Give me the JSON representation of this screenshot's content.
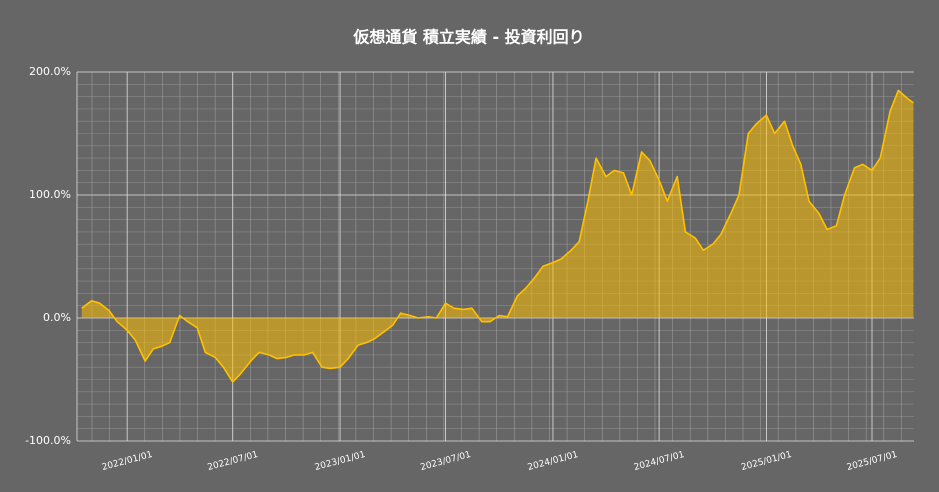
{
  "chart_data": {
    "type": "area",
    "title": "仮想通貨 積立実績 - 投資利回り",
    "x": [
      "2021/10/15",
      "2021/11/01",
      "2021/11/15",
      "2021/12/01",
      "2021/12/15",
      "2022/01/01",
      "2022/01/15",
      "2022/02/01",
      "2022/02/15",
      "2022/03/01",
      "2022/03/15",
      "2022/04/01",
      "2022/04/15",
      "2022/05/01",
      "2022/05/15",
      "2022/06/01",
      "2022/06/15",
      "2022/07/01",
      "2022/07/15",
      "2022/08/01",
      "2022/08/15",
      "2022/09/01",
      "2022/09/15",
      "2022/10/01",
      "2022/10/15",
      "2022/11/01",
      "2022/11/15",
      "2022/12/01",
      "2022/12/15",
      "2023/01/01",
      "2023/01/15",
      "2023/02/01",
      "2023/02/15",
      "2023/03/01",
      "2023/03/15",
      "2023/04/01",
      "2023/04/15",
      "2023/05/01",
      "2023/05/15",
      "2023/06/01",
      "2023/06/15",
      "2023/07/01",
      "2023/07/15",
      "2023/08/01",
      "2023/08/15",
      "2023/09/01",
      "2023/09/15",
      "2023/10/01",
      "2023/10/15",
      "2023/11/01",
      "2023/11/15",
      "2023/12/01",
      "2023/12/15",
      "2024/01/01",
      "2024/01/15",
      "2024/02/01",
      "2024/02/15",
      "2024/03/01",
      "2024/03/15",
      "2024/04/01",
      "2024/04/15",
      "2024/05/01",
      "2024/05/15",
      "2024/06/01",
      "2024/06/15",
      "2024/07/01",
      "2024/07/15",
      "2024/08/01",
      "2024/08/15",
      "2024/09/01",
      "2024/09/15",
      "2024/10/01",
      "2024/10/15",
      "2024/11/01",
      "2024/11/15",
      "2024/12/01",
      "2024/12/15",
      "2025/01/01",
      "2025/01/15",
      "2025/02/01",
      "2025/02/15",
      "2025/03/01",
      "2025/03/15",
      "2025/04/01",
      "2025/04/15",
      "2025/05/01",
      "2025/05/15",
      "2025/06/01",
      "2025/06/15",
      "2025/07/01",
      "2025/07/15",
      "2025/08/01",
      "2025/08/15",
      "2025/09/01",
      "2025/09/10"
    ],
    "series": [
      {
        "color": "#ffc000",
        "fill": "rgba(255,192,0,0.55)",
        "values": [
          8,
          14,
          12,
          6,
          -3,
          -10,
          -18,
          -35,
          -25,
          -23,
          -20,
          2,
          -3,
          -8,
          -28,
          -32,
          -40,
          -52,
          -45,
          -35,
          -28,
          -30,
          -33,
          -32,
          -30,
          -30,
          -28,
          -40,
          -41,
          -40,
          -33,
          -22,
          -20,
          -17,
          -12,
          -6,
          4,
          2,
          0,
          1,
          0,
          12,
          8,
          7,
          8,
          -3,
          -3,
          2,
          1,
          18,
          24,
          33,
          42,
          45,
          48,
          55,
          62,
          95,
          130,
          115,
          120,
          118,
          100,
          135,
          128,
          112,
          95,
          115,
          70,
          65,
          55,
          60,
          68,
          85,
          100,
          150,
          158,
          165,
          150,
          160,
          140,
          125,
          95,
          85,
          72,
          75,
          100,
          122,
          125,
          120,
          130,
          168,
          185,
          178,
          175
        ]
      }
    ],
    "xlim": [
      "2021/10/07",
      "2025/09/11"
    ],
    "xticks": [
      "2022/01/01",
      "2022/07/01",
      "2023/01/01",
      "2023/07/01",
      "2024/01/01",
      "2024/07/01",
      "2025/01/01",
      "2025/07/01"
    ],
    "ylim": [
      -100,
      200
    ],
    "yticks": [
      {
        "value": -100,
        "label": "-100.0%"
      },
      {
        "value": 0,
        "label": "0.0%"
      },
      {
        "value": 100,
        "label": "100.0%"
      },
      {
        "value": 200,
        "label": "200.0%"
      }
    ],
    "grid": true
  }
}
